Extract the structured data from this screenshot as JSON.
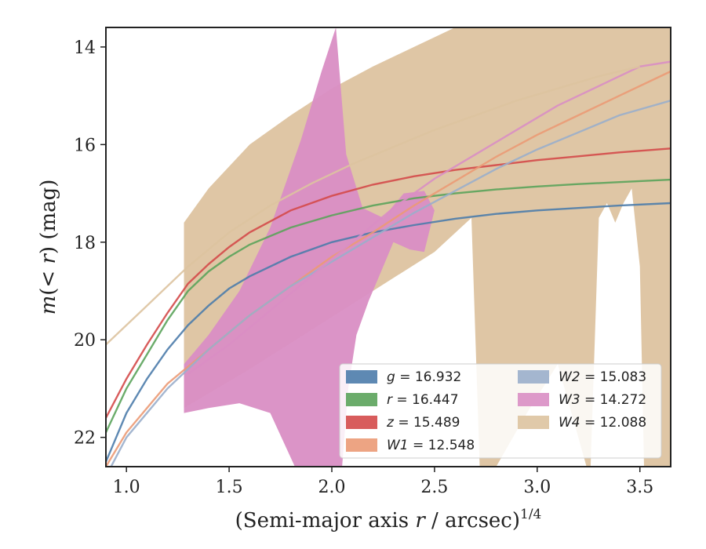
{
  "chart_data": {
    "type": "area",
    "xlabel": "(Semi-major axis r / arcsec)",
    "xlabel_main": "(Semi-major axis ",
    "xlabel_var": "r",
    "xlabel_tail": " / arcsec)",
    "xlabel_exp": "1/4",
    "ylabel": "m(< r) (mag)",
    "ylabel_m": "m",
    "ylabel_mid": "(< ",
    "ylabel_r": "r",
    "ylabel_tail": ") (mag)",
    "xlim": [
      0.9,
      3.65
    ],
    "ylim": [
      22.6,
      13.6
    ],
    "y_inverted": true,
    "xticks": [
      1.0,
      1.5,
      2.0,
      2.5,
      3.0,
      3.5
    ],
    "xtick_labels": [
      "1.0",
      "1.5",
      "2.0",
      "2.5",
      "3.0",
      "3.5"
    ],
    "yticks": [
      14,
      16,
      18,
      20,
      22
    ],
    "ytick_labels": [
      "14",
      "16",
      "18",
      "20",
      "22"
    ],
    "grid": false,
    "legend_placement": "lower-right",
    "legend_columns": 2,
    "series": [
      {
        "name": "g = 16.932",
        "legend_var": "g",
        "legend_value": "16.932",
        "color": "#4c7cab",
        "x": [
          0.9,
          1.0,
          1.1,
          1.2,
          1.3,
          1.4,
          1.5,
          1.6,
          1.8,
          2.0,
          2.2,
          2.4,
          2.6,
          2.8,
          3.0,
          3.2,
          3.4,
          3.65
        ],
        "y": [
          22.5,
          21.5,
          20.8,
          20.2,
          19.7,
          19.3,
          18.95,
          18.7,
          18.3,
          18.0,
          17.8,
          17.65,
          17.52,
          17.42,
          17.35,
          17.3,
          17.25,
          17.2
        ]
      },
      {
        "name": "r = 16.447",
        "legend_var": "r",
        "legend_value": "16.447",
        "color": "#5ba35b",
        "x": [
          0.9,
          1.0,
          1.1,
          1.2,
          1.3,
          1.4,
          1.5,
          1.6,
          1.8,
          2.0,
          2.2,
          2.4,
          2.6,
          2.8,
          3.0,
          3.2,
          3.4,
          3.65
        ],
        "y": [
          21.9,
          21.0,
          20.3,
          19.6,
          19.0,
          18.6,
          18.3,
          18.05,
          17.7,
          17.45,
          17.25,
          17.1,
          17.0,
          16.92,
          16.86,
          16.81,
          16.77,
          16.72
        ]
      },
      {
        "name": "z = 15.489",
        "legend_var": "z",
        "legend_value": "15.489",
        "color": "#d44a4a",
        "x": [
          0.9,
          1.0,
          1.1,
          1.2,
          1.3,
          1.4,
          1.5,
          1.6,
          1.8,
          2.0,
          2.2,
          2.4,
          2.6,
          2.8,
          3.0,
          3.2,
          3.4,
          3.65
        ],
        "y": [
          21.6,
          20.8,
          20.1,
          19.45,
          18.85,
          18.45,
          18.1,
          17.8,
          17.35,
          17.05,
          16.82,
          16.65,
          16.52,
          16.42,
          16.32,
          16.24,
          16.16,
          16.08
        ]
      },
      {
        "name": "W1 = 12.548",
        "legend_var": "W1",
        "legend_value": "12.548",
        "color": "#eb9a76",
        "x": [
          0.9,
          1.0,
          1.2,
          1.4,
          1.6,
          1.8,
          2.0,
          2.2,
          2.4,
          2.6,
          2.8,
          3.0,
          3.2,
          3.4,
          3.65
        ],
        "y": [
          22.6,
          21.9,
          20.9,
          20.2,
          19.5,
          18.9,
          18.3,
          17.8,
          17.25,
          16.75,
          16.25,
          15.8,
          15.4,
          15.0,
          14.5
        ]
      },
      {
        "name": "W2 = 15.083",
        "legend_var": "W2",
        "legend_value": "15.083",
        "color": "#9aaecb",
        "x": [
          0.9,
          1.0,
          1.2,
          1.4,
          1.6,
          1.8,
          2.0,
          2.2,
          2.4,
          2.6,
          2.8,
          3.0,
          3.2,
          3.4,
          3.65
        ],
        "y": [
          22.8,
          22.0,
          21.0,
          20.2,
          19.5,
          18.9,
          18.4,
          17.9,
          17.4,
          16.95,
          16.5,
          16.1,
          15.75,
          15.4,
          15.1
        ]
      },
      {
        "name": "W3 = 14.272",
        "legend_var": "W3",
        "legend_value": "14.272",
        "color": "#d98ec4",
        "x": [
          1.3,
          1.5,
          1.7,
          1.9,
          2.1,
          2.3,
          2.5,
          2.7,
          2.9,
          3.1,
          3.3,
          3.5,
          3.65
        ],
        "y": [
          20.7,
          20.1,
          19.4,
          18.7,
          18.0,
          17.3,
          16.7,
          16.2,
          15.7,
          15.2,
          14.8,
          14.4,
          14.3
        ]
      },
      {
        "name": "W4 = 12.088",
        "legend_var": "W4",
        "legend_value": "12.088",
        "color": "#ddc3a0",
        "x": [
          0.9,
          1.1,
          1.3,
          1.5,
          1.7,
          1.9,
          2.1,
          2.3,
          2.5,
          2.7,
          2.9,
          3.1,
          3.3,
          3.5
        ],
        "y": [
          20.1,
          19.3,
          18.5,
          17.8,
          17.25,
          16.8,
          16.4,
          16.05,
          15.7,
          15.4,
          15.1,
          14.85,
          14.6,
          14.4
        ]
      }
    ],
    "bands": [
      {
        "series": "W4",
        "color": "#ddc3a0",
        "upper": [
          [
            1.28,
            17.6
          ],
          [
            1.4,
            16.9
          ],
          [
            1.6,
            16.0
          ],
          [
            1.8,
            15.4
          ],
          [
            2.0,
            14.85
          ],
          [
            2.2,
            14.4
          ],
          [
            2.4,
            14.0
          ],
          [
            2.55,
            13.7
          ],
          [
            2.6,
            13.6
          ],
          [
            3.65,
            13.6
          ]
        ],
        "lower": [
          [
            3.65,
            22.6
          ],
          [
            3.52,
            22.6
          ],
          [
            3.5,
            18.5
          ],
          [
            3.46,
            16.9
          ],
          [
            3.42,
            17.2
          ],
          [
            3.38,
            17.6
          ],
          [
            3.34,
            17.2
          ],
          [
            3.3,
            17.5
          ],
          [
            3.26,
            22.6
          ],
          [
            3.24,
            22.6
          ],
          [
            3.1,
            20.5
          ],
          [
            2.95,
            21.5
          ],
          [
            2.8,
            22.6
          ],
          [
            2.72,
            22.6
          ],
          [
            2.68,
            17.5
          ],
          [
            2.5,
            18.2
          ],
          [
            2.2,
            19.0
          ],
          [
            1.9,
            19.8
          ],
          [
            1.6,
            20.6
          ],
          [
            1.28,
            21.4
          ]
        ]
      },
      {
        "series": "W3",
        "color": "#d98ec4",
        "upper": [
          [
            1.28,
            20.5
          ],
          [
            1.4,
            19.9
          ],
          [
            1.55,
            19.0
          ],
          [
            1.7,
            17.7
          ],
          [
            1.85,
            15.9
          ],
          [
            1.95,
            14.5
          ],
          [
            2.02,
            13.6
          ],
          [
            2.07,
            16.2
          ],
          [
            2.15,
            17.3
          ],
          [
            2.25,
            17.5
          ],
          [
            2.35,
            17.0
          ],
          [
            2.45,
            16.95
          ],
          [
            2.5,
            17.35
          ]
        ],
        "lower": [
          [
            2.5,
            17.35
          ],
          [
            2.45,
            18.2
          ],
          [
            2.38,
            18.15
          ],
          [
            2.3,
            18.0
          ],
          [
            2.25,
            18.5
          ],
          [
            2.18,
            19.2
          ],
          [
            2.12,
            19.9
          ],
          [
            2.08,
            21.0
          ],
          [
            2.05,
            22.6
          ],
          [
            1.82,
            22.6
          ],
          [
            1.7,
            21.5
          ],
          [
            1.55,
            21.3
          ],
          [
            1.4,
            21.4
          ],
          [
            1.28,
            21.5
          ]
        ]
      }
    ]
  }
}
